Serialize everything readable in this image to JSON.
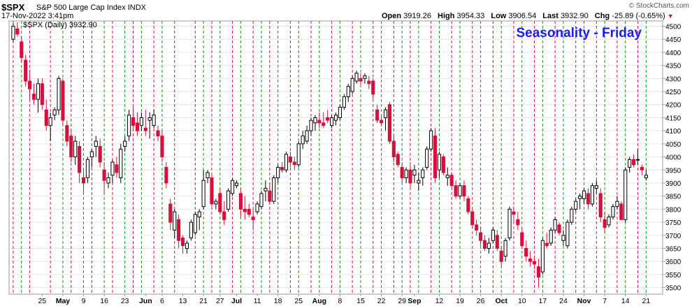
{
  "header": {
    "ticker": "$SPX",
    "name": "S&P 500 Large Cap Index",
    "exchange": "INDX",
    "date": "17-Nov-2022 3:41pm",
    "open_label": "Open",
    "open": "3919.26",
    "high_label": "High",
    "high": "3954.33",
    "low_label": "Low",
    "low": "3906.54",
    "last_label": "Last",
    "last": "3932.90",
    "chg_label": "Chg",
    "chg": "-25.89 (-0.65%)",
    "copyright": "© StockCharts.com"
  },
  "chart_data": {
    "type": "candlestick",
    "legend": "$SPX (Daily) 3932.90",
    "annotation": "Seasonality - Friday",
    "ylim": [
      3475,
      4520
    ],
    "yticks": [
      3500,
      3550,
      3600,
      3650,
      3700,
      3750,
      3800,
      3850,
      3900,
      3950,
      4000,
      4050,
      4100,
      4150,
      4200,
      4250,
      4300,
      4350,
      4400,
      4450,
      4500
    ],
    "xticks": [
      {
        "label": "25",
        "i": 7
      },
      {
        "label": "May",
        "i": 12
      },
      {
        "label": "9",
        "i": 17
      },
      {
        "label": "16",
        "i": 22
      },
      {
        "label": "23",
        "i": 27
      },
      {
        "label": "Jun",
        "i": 32
      },
      {
        "label": "6",
        "i": 36
      },
      {
        "label": "13",
        "i": 41
      },
      {
        "label": "21",
        "i": 46
      },
      {
        "label": "27",
        "i": 50
      },
      {
        "label": "Jul",
        "i": 54
      },
      {
        "label": "11",
        "i": 59
      },
      {
        "label": "18",
        "i": 64
      },
      {
        "label": "25",
        "i": 69
      },
      {
        "label": "Aug",
        "i": 74
      },
      {
        "label": "8",
        "i": 79
      },
      {
        "label": "15",
        "i": 84
      },
      {
        "label": "22",
        "i": 89
      },
      {
        "label": "29",
        "i": 94
      },
      {
        "label": "Sep",
        "i": 97
      },
      {
        "label": "12",
        "i": 103
      },
      {
        "label": "19",
        "i": 108
      },
      {
        "label": "26",
        "i": 113
      },
      {
        "label": "Oct",
        "i": 118
      },
      {
        "label": "10",
        "i": 123
      },
      {
        "label": "17",
        "i": 128
      },
      {
        "label": "24",
        "i": 133
      },
      {
        "label": "Nov",
        "i": 138
      },
      {
        "label": "7",
        "i": 143
      },
      {
        "label": "14",
        "i": 148
      },
      {
        "label": "21",
        "i": 153
      }
    ],
    "x_range": [
      -1,
      157
    ],
    "colors": {
      "up": "#000000",
      "down": "#d6103c",
      "friday_up": "#1a8a1a",
      "friday_down": "#d6103c",
      "title": "#1a1aff"
    },
    "fridays_up": [
      2,
      12,
      17,
      22,
      27,
      31,
      36,
      46,
      50,
      55,
      60,
      64,
      69,
      74,
      79,
      84,
      89,
      94,
      98,
      103,
      108,
      113,
      118,
      123,
      128,
      133,
      138,
      143,
      148,
      153
    ],
    "fridays_down": [
      0,
      4,
      9,
      14,
      19,
      24,
      29,
      34,
      39,
      44,
      48,
      53,
      58,
      62,
      67,
      72,
      77,
      82,
      87,
      92,
      96,
      101,
      106,
      111,
      116,
      121,
      126,
      131,
      136,
      141,
      146,
      151
    ],
    "series": [
      {
        "values": [
          [
            4450,
            4510,
            4440,
            4500
          ],
          [
            4490,
            4515,
            4460,
            4470
          ],
          [
            4440,
            4460,
            4360,
            4380
          ],
          [
            4370,
            4390,
            4270,
            4290
          ],
          [
            4290,
            4330,
            4220,
            4260
          ],
          [
            4240,
            4280,
            4200,
            4220
          ],
          [
            4220,
            4300,
            4170,
            4280
          ],
          [
            4280,
            4300,
            4180,
            4200
          ],
          [
            4180,
            4220,
            4100,
            4120
          ],
          [
            4120,
            4170,
            4060,
            4150
          ],
          [
            4160,
            4190,
            4140,
            4180
          ],
          [
            4180,
            4310,
            4160,
            4300
          ],
          [
            4290,
            4300,
            4120,
            4140
          ],
          [
            4120,
            4140,
            4040,
            4060
          ],
          [
            4080,
            4100,
            3980,
            4000
          ],
          [
            4000,
            4080,
            3970,
            4060
          ],
          [
            4040,
            4060,
            3900,
            3940
          ],
          [
            3920,
            3950,
            3860,
            3900
          ],
          [
            3920,
            4000,
            3900,
            3990
          ],
          [
            4000,
            4030,
            3960,
            4020
          ],
          [
            4040,
            4080,
            4000,
            4060
          ],
          [
            4040,
            4070,
            3960,
            3980
          ],
          [
            3950,
            3980,
            3860,
            3910
          ],
          [
            3900,
            3940,
            3880,
            3920
          ],
          [
            3930,
            3990,
            3900,
            3980
          ],
          [
            3970,
            4000,
            3920,
            3940
          ],
          [
            3920,
            4050,
            3900,
            4030
          ],
          [
            4040,
            4080,
            4020,
            4060
          ],
          [
            4080,
            4180,
            4060,
            4160
          ],
          [
            4150,
            4190,
            4100,
            4120
          ],
          [
            4130,
            4170,
            4080,
            4100
          ],
          [
            4120,
            4170,
            4100,
            4150
          ],
          [
            4110,
            4180,
            4080,
            4100
          ],
          [
            4140,
            4170,
            4070,
            4150
          ],
          [
            4120,
            4180,
            4110,
            4160
          ],
          [
            4100,
            4120,
            4060,
            4080
          ],
          [
            4080,
            4100,
            3980,
            4000
          ],
          [
            3960,
            3980,
            3880,
            3900
          ],
          [
            3820,
            3840,
            3720,
            3750
          ],
          [
            3720,
            3800,
            3690,
            3790
          ],
          [
            3760,
            3780,
            3650,
            3680
          ],
          [
            3690,
            3700,
            3630,
            3660
          ],
          [
            3650,
            3680,
            3630,
            3670
          ],
          [
            3690,
            3760,
            3680,
            3750
          ],
          [
            3710,
            3790,
            3700,
            3780
          ],
          [
            3770,
            3800,
            3720,
            3790
          ],
          [
            3810,
            3950,
            3800,
            3910
          ],
          [
            3920,
            3950,
            3900,
            3940
          ],
          [
            3920,
            3930,
            3810,
            3820
          ],
          [
            3820,
            3840,
            3800,
            3830
          ],
          [
            3860,
            3880,
            3780,
            3790
          ],
          [
            3790,
            3830,
            3740,
            3760
          ],
          [
            3800,
            3880,
            3790,
            3870
          ],
          [
            3860,
            3920,
            3850,
            3910
          ],
          [
            3890,
            3910,
            3880,
            3900
          ],
          [
            3860,
            3880,
            3770,
            3800
          ],
          [
            3800,
            3850,
            3760,
            3790
          ],
          [
            3800,
            3820,
            3770,
            3780
          ],
          [
            3770,
            3800,
            3720,
            3760
          ],
          [
            3790,
            3830,
            3780,
            3820
          ],
          [
            3810,
            3870,
            3800,
            3860
          ],
          [
            3870,
            3910,
            3830,
            3880
          ],
          [
            3870,
            3900,
            3820,
            3830
          ],
          [
            3830,
            3930,
            3820,
            3920
          ],
          [
            3920,
            3970,
            3900,
            3960
          ],
          [
            3960,
            3980,
            3940,
            3950
          ],
          [
            3950,
            4020,
            3940,
            4010
          ],
          [
            4000,
            4020,
            3960,
            3980
          ],
          [
            3980,
            4000,
            3950,
            3970
          ],
          [
            3970,
            4060,
            3960,
            4050
          ],
          [
            4050,
            4100,
            4030,
            4080
          ],
          [
            4060,
            4120,
            4050,
            4100
          ],
          [
            4100,
            4150,
            4080,
            4140
          ],
          [
            4130,
            4160,
            4100,
            4150
          ],
          [
            4140,
            4170,
            4110,
            4130
          ],
          [
            4130,
            4170,
            4110,
            4120
          ],
          [
            4150,
            4180,
            4130,
            4140
          ],
          [
            4120,
            4160,
            4110,
            4150
          ],
          [
            4140,
            4170,
            4120,
            4160
          ],
          [
            4150,
            4200,
            4140,
            4190
          ],
          [
            4190,
            4240,
            4180,
            4230
          ],
          [
            4230,
            4280,
            4210,
            4270
          ],
          [
            4250,
            4310,
            4240,
            4300
          ],
          [
            4290,
            4330,
            4280,
            4320
          ],
          [
            4300,
            4320,
            4270,
            4290
          ],
          [
            4300,
            4320,
            4280,
            4310
          ],
          [
            4290,
            4310,
            4260,
            4280
          ],
          [
            4290,
            4300,
            4220,
            4240
          ],
          [
            4180,
            4200,
            4130,
            4140
          ],
          [
            4140,
            4160,
            4120,
            4130
          ],
          [
            4150,
            4190,
            4100,
            4180
          ],
          [
            4200,
            4210,
            4050,
            4060
          ],
          [
            4060,
            4080,
            3980,
            4000
          ],
          [
            4010,
            4020,
            3960,
            3970
          ],
          [
            3960,
            3980,
            3900,
            3920
          ],
          [
            3920,
            3960,
            3900,
            3950
          ],
          [
            3950,
            3980,
            3880,
            3900
          ],
          [
            3930,
            3970,
            3900,
            3950
          ],
          [
            3900,
            3940,
            3870,
            3910
          ],
          [
            3920,
            3960,
            3890,
            3950
          ],
          [
            3960,
            4040,
            3950,
            4030
          ],
          [
            4030,
            4110,
            4020,
            4100
          ],
          [
            4080,
            4110,
            3900,
            3920
          ],
          [
            3950,
            4020,
            3920,
            4010
          ],
          [
            4000,
            4010,
            3930,
            3940
          ],
          [
            3920,
            3960,
            3890,
            3930
          ],
          [
            3930,
            3940,
            3880,
            3890
          ],
          [
            3890,
            3910,
            3840,
            3850
          ],
          [
            3850,
            3900,
            3840,
            3890
          ],
          [
            3890,
            3910,
            3830,
            3850
          ],
          [
            3840,
            3850,
            3780,
            3790
          ],
          [
            3790,
            3800,
            3730,
            3740
          ],
          [
            3740,
            3760,
            3700,
            3720
          ],
          [
            3710,
            3730,
            3660,
            3680
          ],
          [
            3680,
            3700,
            3640,
            3650
          ],
          [
            3650,
            3690,
            3630,
            3670
          ],
          [
            3680,
            3730,
            3670,
            3720
          ],
          [
            3700,
            3720,
            3640,
            3650
          ],
          [
            3640,
            3660,
            3580,
            3600
          ],
          [
            3620,
            3690,
            3600,
            3680
          ],
          [
            3690,
            3810,
            3680,
            3800
          ],
          [
            3790,
            3810,
            3750,
            3780
          ],
          [
            3760,
            3790,
            3720,
            3740
          ],
          [
            3710,
            3730,
            3650,
            3660
          ],
          [
            3650,
            3680,
            3600,
            3620
          ],
          [
            3610,
            3640,
            3580,
            3600
          ],
          [
            3600,
            3620,
            3570,
            3590
          ],
          [
            3580,
            3610,
            3500,
            3540
          ],
          [
            3560,
            3690,
            3550,
            3680
          ],
          [
            3670,
            3710,
            3650,
            3660
          ],
          [
            3670,
            3730,
            3660,
            3720
          ],
          [
            3720,
            3770,
            3710,
            3760
          ],
          [
            3740,
            3750,
            3700,
            3710
          ],
          [
            3680,
            3720,
            3660,
            3700
          ],
          [
            3660,
            3760,
            3650,
            3750
          ],
          [
            3750,
            3810,
            3740,
            3800
          ],
          [
            3800,
            3840,
            3790,
            3830
          ],
          [
            3840,
            3860,
            3800,
            3850
          ],
          [
            3840,
            3880,
            3820,
            3870
          ],
          [
            3860,
            3880,
            3800,
            3820
          ],
          [
            3820,
            3900,
            3810,
            3890
          ],
          [
            3880,
            3910,
            3860,
            3890
          ],
          [
            3860,
            3880,
            3750,
            3770
          ],
          [
            3760,
            3790,
            3710,
            3730
          ],
          [
            3740,
            3780,
            3730,
            3770
          ],
          [
            3770,
            3820,
            3760,
            3810
          ],
          [
            3810,
            3850,
            3800,
            3830
          ],
          [
            3820,
            3830,
            3760,
            3760
          ],
          [
            3760,
            3960,
            3750,
            3950
          ],
          [
            3960,
            4000,
            3940,
            3990
          ],
          [
            3990,
            4010,
            3960,
            3970
          ],
          [
            3990,
            4030,
            3970,
            3990
          ],
          [
            3960,
            3970,
            3930,
            3950
          ],
          [
            3920,
            3950,
            3910,
            3930
          ]
        ]
      }
    ]
  }
}
